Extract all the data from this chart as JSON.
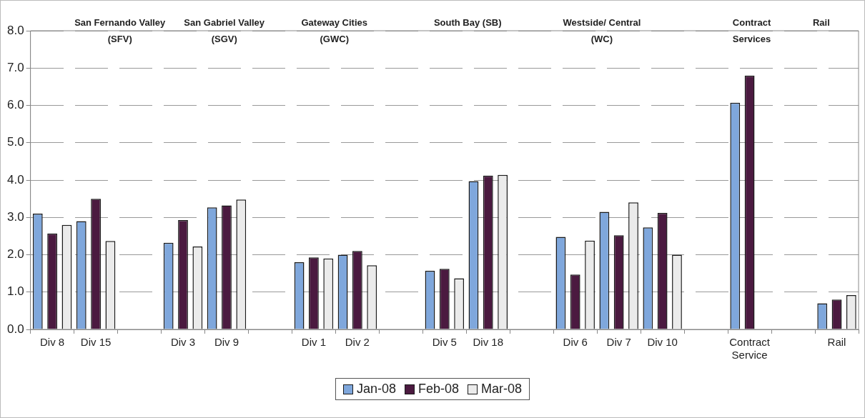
{
  "chart_data": {
    "type": "bar",
    "categories": [
      "Div 8",
      "Div 15",
      null,
      "Div 3",
      "Div 9",
      null,
      "Div 1",
      "Div 2",
      null,
      "Div 5",
      "Div 18",
      null,
      "Div 6",
      "Div 7",
      "Div 10",
      null,
      "Contract Service",
      null,
      "Rail"
    ],
    "series": [
      {
        "name": "Jan-08",
        "color": "#7fa7dc",
        "values": [
          3.1,
          2.9,
          null,
          2.32,
          3.27,
          null,
          1.8,
          2.0,
          null,
          1.57,
          3.97,
          null,
          2.48,
          3.15,
          2.73,
          null,
          6.07,
          null,
          0.7
        ]
      },
      {
        "name": "Feb-08",
        "color": "#4b1a40",
        "values": [
          2.57,
          3.5,
          null,
          2.93,
          3.32,
          null,
          1.93,
          2.1,
          null,
          1.62,
          4.12,
          null,
          1.47,
          2.52,
          3.12,
          null,
          6.8,
          null,
          0.8
        ]
      },
      {
        "name": "Mar-08",
        "color": "#ebebeb",
        "values": [
          2.8,
          2.37,
          null,
          2.22,
          3.48,
          null,
          1.9,
          1.72,
          null,
          1.37,
          4.14,
          null,
          2.38,
          3.4,
          2.0,
          null,
          null,
          null,
          0.92
        ]
      }
    ],
    "annotations": [
      "San Fernando Valley\n(SFV)",
      "San Gabriel Valley\n(SGV)",
      "Gateway Cities\n(GWC)",
      "South Bay (SB)",
      "Westside/ Central\n(WC)",
      "Contract\nServices",
      "Rail"
    ],
    "ylim": [
      0,
      8
    ],
    "yticks": [
      {
        "value": 0,
        "label": "0.0"
      },
      {
        "value": 1,
        "label": "1.0"
      },
      {
        "value": 2,
        "label": "2.0"
      },
      {
        "value": 3,
        "label": "3.0"
      },
      {
        "value": 4,
        "label": "4.0"
      },
      {
        "value": 5,
        "label": "5.0"
      },
      {
        "value": 6,
        "label": "6.0"
      },
      {
        "value": 7,
        "label": "7.0"
      },
      {
        "value": 8,
        "label": "8.0"
      }
    ],
    "grid": "y",
    "legend": "bottom"
  }
}
